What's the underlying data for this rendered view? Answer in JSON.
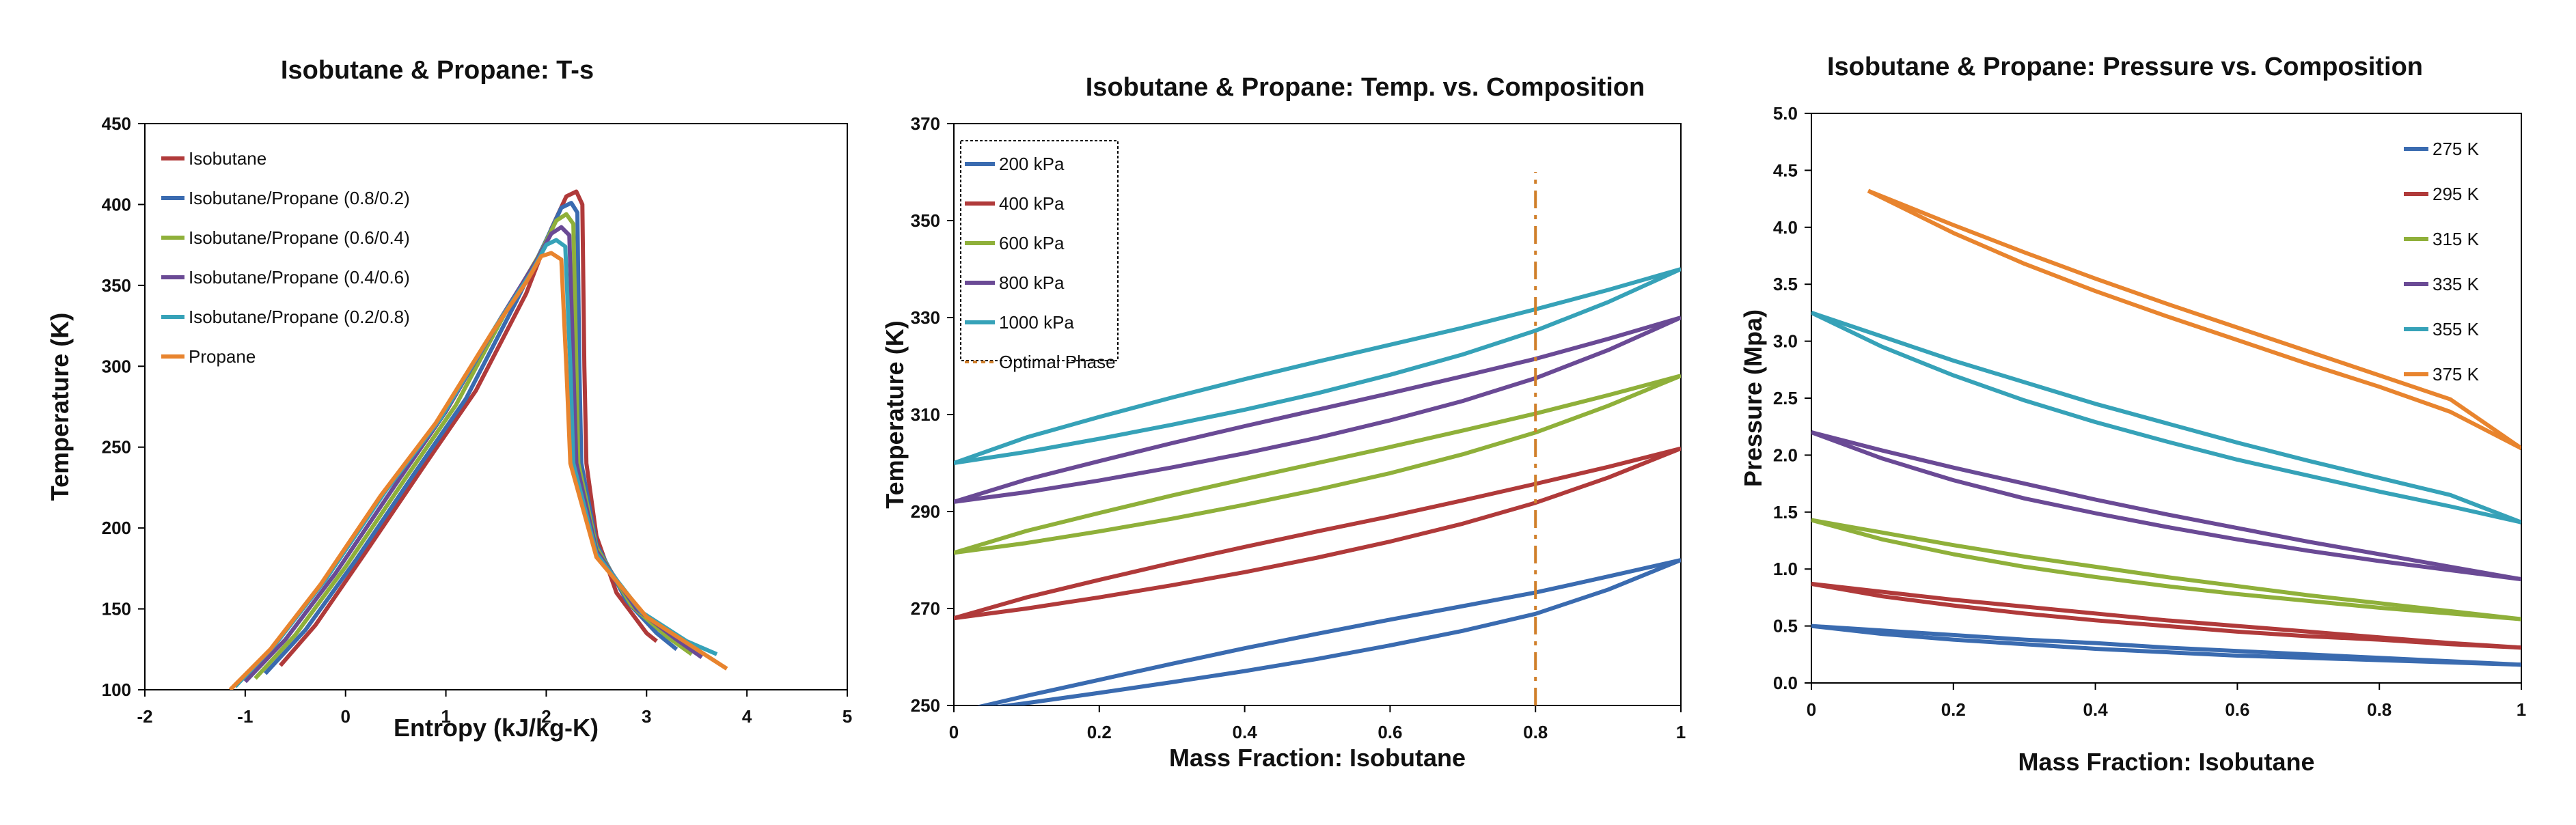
{
  "chart_data": [
    {
      "type": "line",
      "title": "Isobutane & Propane: T-s",
      "xlabel": "Entropy (kJ/kg-K)",
      "ylabel": "Temperature (K)",
      "xlim": [
        -2,
        5
      ],
      "ylim": [
        100,
        450
      ],
      "xticks": [
        "-2",
        "-1",
        "0",
        "1",
        "2",
        "3",
        "4",
        "5"
      ],
      "yticks": [
        "100",
        "150",
        "200",
        "250",
        "300",
        "350",
        "400",
        "450"
      ],
      "legend_position": "top-left",
      "series": [
        {
          "name": "Isobutane",
          "color": "#b03a3a",
          "x": [
            -0.65,
            -0.3,
            0.2,
            0.8,
            1.3,
            1.8,
            2.05,
            2.2,
            2.3,
            2.36,
            2.38,
            2.4,
            2.5,
            2.7,
            3.0,
            3.1
          ],
          "y": [
            115,
            140,
            185,
            240,
            285,
            345,
            385,
            405,
            408,
            400,
            300,
            240,
            195,
            160,
            135,
            130
          ]
        },
        {
          "name": "Isobutane/Propane (0.8/0.2)",
          "color": "#3a6bb0",
          "x": [
            -0.8,
            -0.4,
            0.1,
            0.7,
            1.2,
            1.7,
            2.0,
            2.15,
            2.25,
            2.31,
            2.33,
            2.35,
            2.5,
            2.8,
            3.1,
            3.3
          ],
          "y": [
            110,
            137,
            180,
            235,
            280,
            340,
            378,
            398,
            401,
            395,
            300,
            240,
            190,
            155,
            135,
            125
          ]
        },
        {
          "name": "Isobutane/Propane (0.6/0.4)",
          "color": "#8fb03a",
          "x": [
            -0.9,
            -0.5,
            0.0,
            0.6,
            1.1,
            1.6,
            1.95,
            2.1,
            2.2,
            2.27,
            2.3,
            2.32,
            2.5,
            2.85,
            3.2,
            3.45
          ],
          "y": [
            107,
            134,
            176,
            231,
            276,
            334,
            371,
            390,
            394,
            388,
            300,
            240,
            188,
            152,
            133,
            122
          ]
        },
        {
          "name": "Isobutane/Propane (0.4/0.6)",
          "color": "#6a4a95",
          "x": [
            -1.0,
            -0.6,
            -0.1,
            0.5,
            1.0,
            1.55,
            1.9,
            2.05,
            2.15,
            2.23,
            2.27,
            2.3,
            2.5,
            2.9,
            3.3,
            3.55
          ],
          "y": [
            105,
            131,
            172,
            227,
            272,
            330,
            365,
            382,
            386,
            381,
            300,
            240,
            186,
            150,
            131,
            120
          ]
        },
        {
          "name": "Isobutane/Propane (0.2/0.8)",
          "color": "#36a2b8",
          "x": [
            -1.1,
            -0.7,
            -0.2,
            0.4,
            0.95,
            1.5,
            1.85,
            2.0,
            2.1,
            2.19,
            2.24,
            2.27,
            2.5,
            2.95,
            3.4,
            3.7
          ],
          "y": [
            102,
            128,
            168,
            223,
            268,
            325,
            358,
            375,
            378,
            374,
            300,
            240,
            184,
            148,
            130,
            122
          ]
        },
        {
          "name": "Propane",
          "color": "#e8842e",
          "x": [
            -1.15,
            -0.75,
            -0.25,
            0.35,
            0.9,
            1.45,
            1.8,
            1.95,
            2.05,
            2.15,
            2.2,
            2.24,
            2.5,
            3.0,
            3.5,
            3.8
          ],
          "y": [
            100,
            125,
            165,
            220,
            265,
            320,
            352,
            368,
            370,
            366,
            300,
            240,
            182,
            145,
            125,
            113
          ]
        }
      ]
    },
    {
      "type": "line",
      "title": "Isobutane & Propane: Temp. vs. Composition",
      "xlabel": "Mass Fraction: Isobutane",
      "ylabel": "Temperature (K)",
      "xlim": [
        0,
        1
      ],
      "ylim": [
        250,
        370
      ],
      "xticks": [
        "0",
        "0.2",
        "0.4",
        "0.6",
        "0.8",
        "1"
      ],
      "yticks": [
        "250",
        "270",
        "290",
        "310",
        "330",
        "350",
        "370"
      ],
      "legend_position": "top-left",
      "series": [
        {
          "name": "200 kPa",
          "color": "#3a6bb0",
          "x": [
            0.0,
            0.1,
            0.2,
            0.3,
            0.4,
            0.5,
            0.6,
            0.7,
            0.8,
            0.9,
            1.0
          ],
          "y_bubble": [
            248.5,
            252.0,
            255.3,
            258.6,
            261.8,
            264.8,
            267.7,
            270.5,
            273.3,
            276.6,
            280.0
          ],
          "y_dew": [
            248.5,
            250.5,
            252.6,
            254.8,
            257.1,
            259.6,
            262.4,
            265.4,
            268.9,
            273.9,
            280.0
          ]
        },
        {
          "name": "400 kPa",
          "color": "#b03a3a",
          "x": [
            0.0,
            0.1,
            0.2,
            0.3,
            0.4,
            0.5,
            0.6,
            0.7,
            0.8,
            0.9,
            1.0
          ],
          "y_bubble": [
            268.0,
            272.3,
            275.9,
            279.4,
            282.7,
            285.9,
            289.0,
            292.3,
            295.7,
            299.2,
            303.0
          ],
          "y_dew": [
            268.0,
            270.0,
            272.3,
            274.8,
            277.5,
            280.5,
            283.8,
            287.5,
            291.8,
            297.0,
            303.0
          ]
        },
        {
          "name": "600 kPa",
          "color": "#8fb03a",
          "x": [
            0.0,
            0.1,
            0.2,
            0.3,
            0.4,
            0.5,
            0.6,
            0.7,
            0.8,
            0.9,
            1.0
          ],
          "y_bubble": [
            281.5,
            286.0,
            289.7,
            293.3,
            296.7,
            300.0,
            303.3,
            306.7,
            310.2,
            314.0,
            318.0
          ],
          "y_dew": [
            281.5,
            283.5,
            285.9,
            288.5,
            291.4,
            294.5,
            297.9,
            301.8,
            306.3,
            311.8,
            318.0
          ]
        },
        {
          "name": "800 kPa",
          "color": "#6a4a95",
          "x": [
            0.0,
            0.1,
            0.2,
            0.3,
            0.4,
            0.5,
            0.6,
            0.7,
            0.8,
            0.9,
            1.0
          ],
          "y_bubble": [
            292.0,
            296.6,
            300.4,
            304.1,
            307.6,
            311.0,
            314.4,
            317.9,
            321.5,
            325.6,
            330.0
          ],
          "y_dew": [
            292.0,
            294.0,
            296.4,
            299.1,
            302.0,
            305.2,
            308.8,
            312.8,
            317.5,
            323.3,
            330.0
          ]
        },
        {
          "name": "1000 kPa",
          "color": "#36a2b8",
          "x": [
            0.0,
            0.1,
            0.2,
            0.3,
            0.4,
            0.5,
            0.6,
            0.7,
            0.8,
            0.9,
            1.0
          ],
          "y_bubble": [
            300.0,
            305.3,
            309.5,
            313.5,
            317.3,
            320.9,
            324.4,
            327.9,
            331.7,
            335.7,
            340.0
          ],
          "y_dew": [
            300.0,
            302.3,
            305.0,
            307.9,
            311.0,
            314.4,
            318.2,
            322.4,
            327.3,
            333.2,
            340.0
          ]
        },
        {
          "name": "Optimal Phase",
          "color": "#d07f2a",
          "line_style": "dash-dot",
          "x": [
            0.8,
            0.8
          ],
          "y": [
            250,
            360
          ]
        }
      ]
    },
    {
      "type": "line",
      "title": "Isobutane & Propane: Pressure vs. Composition",
      "xlabel": "Mass Fraction: Isobutane",
      "ylabel": "Pressure (Mpa)",
      "xlim": [
        0,
        1
      ],
      "ylim": [
        0.0,
        5.0
      ],
      "xticks": [
        "0",
        "0.2",
        "0.4",
        "0.6",
        "0.8",
        "1"
      ],
      "yticks": [
        "0.0",
        "0.5",
        "1.0",
        "1.5",
        "2.0",
        "2.5",
        "3.0",
        "3.5",
        "4.0",
        "4.5",
        "5.0"
      ],
      "legend_position": "top-right",
      "series": [
        {
          "name": "275 K",
          "color": "#3a6bb0",
          "x": [
            0.0,
            0.1,
            0.2,
            0.3,
            0.4,
            0.5,
            0.6,
            0.7,
            0.8,
            0.9,
            1.0
          ],
          "y_bubble": [
            0.5,
            0.46,
            0.42,
            0.38,
            0.35,
            0.31,
            0.28,
            0.25,
            0.22,
            0.19,
            0.16
          ],
          "y_dew": [
            0.5,
            0.43,
            0.38,
            0.34,
            0.3,
            0.27,
            0.24,
            0.22,
            0.2,
            0.18,
            0.16
          ]
        },
        {
          "name": "295 K",
          "color": "#b03a3a",
          "x": [
            0.0,
            0.1,
            0.2,
            0.3,
            0.4,
            0.5,
            0.6,
            0.7,
            0.8,
            0.9,
            1.0
          ],
          "y_bubble": [
            0.87,
            0.8,
            0.73,
            0.67,
            0.61,
            0.55,
            0.5,
            0.45,
            0.4,
            0.35,
            0.31
          ],
          "y_dew": [
            0.87,
            0.76,
            0.68,
            0.61,
            0.55,
            0.5,
            0.45,
            0.41,
            0.38,
            0.34,
            0.31
          ]
        },
        {
          "name": "315 K",
          "color": "#8fb03a",
          "x": [
            0.0,
            0.1,
            0.2,
            0.3,
            0.4,
            0.5,
            0.6,
            0.7,
            0.8,
            0.9,
            1.0
          ],
          "y_bubble": [
            1.43,
            1.32,
            1.21,
            1.11,
            1.02,
            0.93,
            0.85,
            0.77,
            0.7,
            0.63,
            0.56
          ],
          "y_dew": [
            1.43,
            1.26,
            1.13,
            1.02,
            0.93,
            0.85,
            0.78,
            0.72,
            0.66,
            0.61,
            0.56
          ]
        },
        {
          "name": "335 K",
          "color": "#6a4a95",
          "x": [
            0.0,
            0.1,
            0.2,
            0.3,
            0.4,
            0.5,
            0.6,
            0.7,
            0.8,
            0.9,
            1.0
          ],
          "y_bubble": [
            2.2,
            2.04,
            1.89,
            1.75,
            1.61,
            1.48,
            1.36,
            1.24,
            1.13,
            1.02,
            0.91
          ],
          "y_dew": [
            2.2,
            1.97,
            1.78,
            1.62,
            1.49,
            1.37,
            1.26,
            1.16,
            1.07,
            0.99,
            0.91
          ]
        },
        {
          "name": "355 K",
          "color": "#36a2b8",
          "x": [
            0.0,
            0.1,
            0.2,
            0.3,
            0.4,
            0.5,
            0.6,
            0.7,
            0.8,
            0.9,
            1.0
          ],
          "y_bubble": [
            3.25,
            3.04,
            2.83,
            2.64,
            2.45,
            2.28,
            2.11,
            1.95,
            1.8,
            1.65,
            1.41
          ],
          "y_dew": [
            3.25,
            2.95,
            2.7,
            2.48,
            2.29,
            2.12,
            1.96,
            1.82,
            1.68,
            1.55,
            1.41
          ]
        },
        {
          "name": "375 K",
          "color": "#e8842e",
          "x": [
            0.08,
            0.2,
            0.3,
            0.4,
            0.5,
            0.6,
            0.7,
            0.8,
            0.9,
            1.0
          ],
          "y_bubble": [
            4.32,
            4.02,
            3.78,
            3.55,
            3.33,
            3.12,
            2.91,
            2.7,
            2.49,
            2.06
          ],
          "y_dew": [
            4.32,
            3.95,
            3.68,
            3.44,
            3.22,
            3.01,
            2.8,
            2.6,
            2.38,
            2.06
          ]
        }
      ]
    }
  ]
}
